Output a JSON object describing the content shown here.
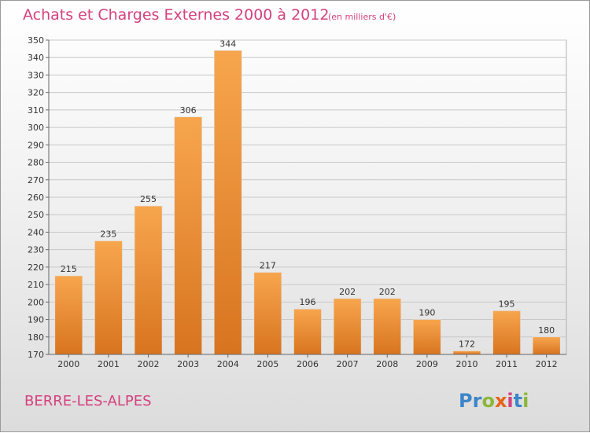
{
  "chart_data": {
    "type": "bar",
    "title": "Achats et Charges Externes 2000 à 2012",
    "subtitle": "(en milliers d'€)",
    "categories": [
      "2000",
      "2001",
      "2002",
      "2003",
      "2004",
      "2005",
      "2006",
      "2007",
      "2008",
      "2009",
      "2010",
      "2011",
      "2012"
    ],
    "values": [
      215,
      235,
      255,
      306,
      344,
      217,
      196,
      202,
      202,
      190,
      172,
      195,
      180
    ],
    "ylim": [
      170,
      350
    ],
    "yticks": [
      170,
      180,
      190,
      200,
      210,
      220,
      230,
      240,
      250,
      260,
      270,
      280,
      290,
      300,
      310,
      320,
      330,
      340,
      350
    ],
    "grid": true,
    "legend": "none",
    "bar_color_top": "#f7a64e",
    "bar_color_bottom": "#d8741f"
  },
  "footer": {
    "place": "BERRE-LES-ALPES",
    "logo_letters": [
      {
        "ch": "P",
        "color": "#3c86c8"
      },
      {
        "ch": "r",
        "color": "#3c86c8"
      },
      {
        "ch": "o",
        "color": "#8cb83a"
      },
      {
        "ch": "x",
        "color": "#e8631a"
      },
      {
        "ch": "i",
        "color": "#d4417f"
      },
      {
        "ch": "t",
        "color": "#3c86c8"
      },
      {
        "ch": "i",
        "color": "#8cb83a"
      }
    ]
  }
}
